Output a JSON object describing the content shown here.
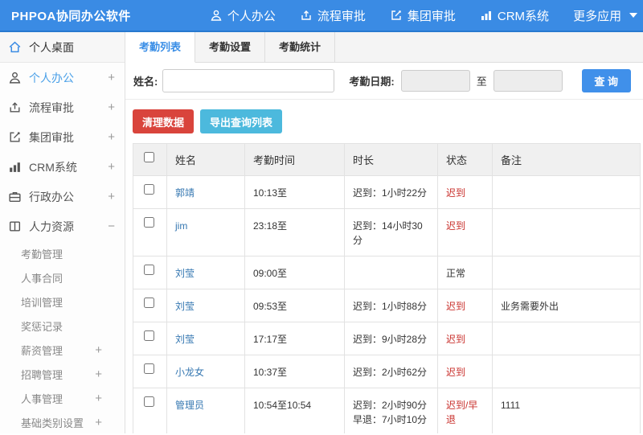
{
  "app": {
    "title": "PHPOA协同办公软件"
  },
  "topnav": {
    "items": [
      {
        "label": "个人办公",
        "icon": "user-icon"
      },
      {
        "label": "流程审批",
        "icon": "workflow-icon"
      },
      {
        "label": "集团审批",
        "icon": "edit-approve-icon"
      },
      {
        "label": "CRM系统",
        "icon": "bar-chart-icon"
      },
      {
        "label": "更多应用",
        "icon": "caret-down-icon"
      }
    ]
  },
  "sidebar": {
    "desktop": {
      "label": "个人桌面"
    },
    "items": [
      {
        "label": "个人办公",
        "expander": "+",
        "active": true
      },
      {
        "label": "流程审批",
        "expander": "+"
      },
      {
        "label": "集团审批",
        "expander": "+"
      },
      {
        "label": "CRM系统",
        "expander": "+"
      },
      {
        "label": "行政办公",
        "expander": "+"
      },
      {
        "label": "人力资源",
        "expander": "−"
      }
    ],
    "sub_items": [
      {
        "label": "考勤管理",
        "expander": ""
      },
      {
        "label": "人事合同",
        "expander": ""
      },
      {
        "label": "培训管理",
        "expander": ""
      },
      {
        "label": "奖惩记录",
        "expander": ""
      },
      {
        "label": "薪资管理",
        "expander": "+"
      },
      {
        "label": "招聘管理",
        "expander": "+"
      },
      {
        "label": "人事管理",
        "expander": "+"
      },
      {
        "label": "基础类别设置",
        "expander": "+"
      }
    ]
  },
  "tabs": [
    {
      "label": "考勤列表",
      "active": true
    },
    {
      "label": "考勤设置",
      "active": false
    },
    {
      "label": "考勤统计",
      "active": false
    }
  ],
  "filters": {
    "name_label": "姓名:",
    "name_value": "",
    "date_label": "考勤日期:",
    "date_from": "",
    "to_label": "至",
    "date_to": "",
    "search_button": "查 询"
  },
  "actions": {
    "clear_button": "清理数据",
    "export_button": "导出查询列表"
  },
  "table": {
    "columns": [
      "姓名",
      "考勤时间",
      "时长",
      "状态",
      "备注"
    ],
    "rows": [
      {
        "name": "郭靖",
        "time": "10:13至",
        "duration": [
          "迟到：1小时22分"
        ],
        "status": "迟到",
        "status_type": "late",
        "remark": ""
      },
      {
        "name": "jim",
        "time": "23:18至",
        "duration": [
          "迟到：14小时30分"
        ],
        "status": "迟到",
        "status_type": "late",
        "remark": ""
      },
      {
        "name": "刘莹",
        "time": "09:00至",
        "duration": [],
        "status": "正常",
        "status_type": "normal",
        "remark": ""
      },
      {
        "name": "刘莹",
        "time": "09:53至",
        "duration": [
          "迟到：1小时88分"
        ],
        "status": "迟到",
        "status_type": "late",
        "remark": "业务需要外出"
      },
      {
        "name": "刘莹",
        "time": "17:17至",
        "duration": [
          "迟到：9小时28分"
        ],
        "status": "迟到",
        "status_type": "late",
        "remark": ""
      },
      {
        "name": "小龙女",
        "time": "10:37至",
        "duration": [
          "迟到：2小时62分"
        ],
        "status": "迟到",
        "status_type": "late",
        "remark": ""
      },
      {
        "name": "管理员",
        "time": "10:54至10:54",
        "duration": [
          "迟到：2小时90分",
          "早退：7小时10分"
        ],
        "status": "迟到/早退",
        "status_type": "late",
        "remark": "1111"
      }
    ]
  },
  "colors": {
    "header_bg": "#3a8be4",
    "header_underline": "#2779cf",
    "accent_blue": "#3a8ee6",
    "link_blue": "#3577b1",
    "status_late": "#c9302c",
    "status_normal": "#333333",
    "danger_button": "#d9443c",
    "info_button": "#4cb9dd",
    "search_button": "#4090ea"
  }
}
